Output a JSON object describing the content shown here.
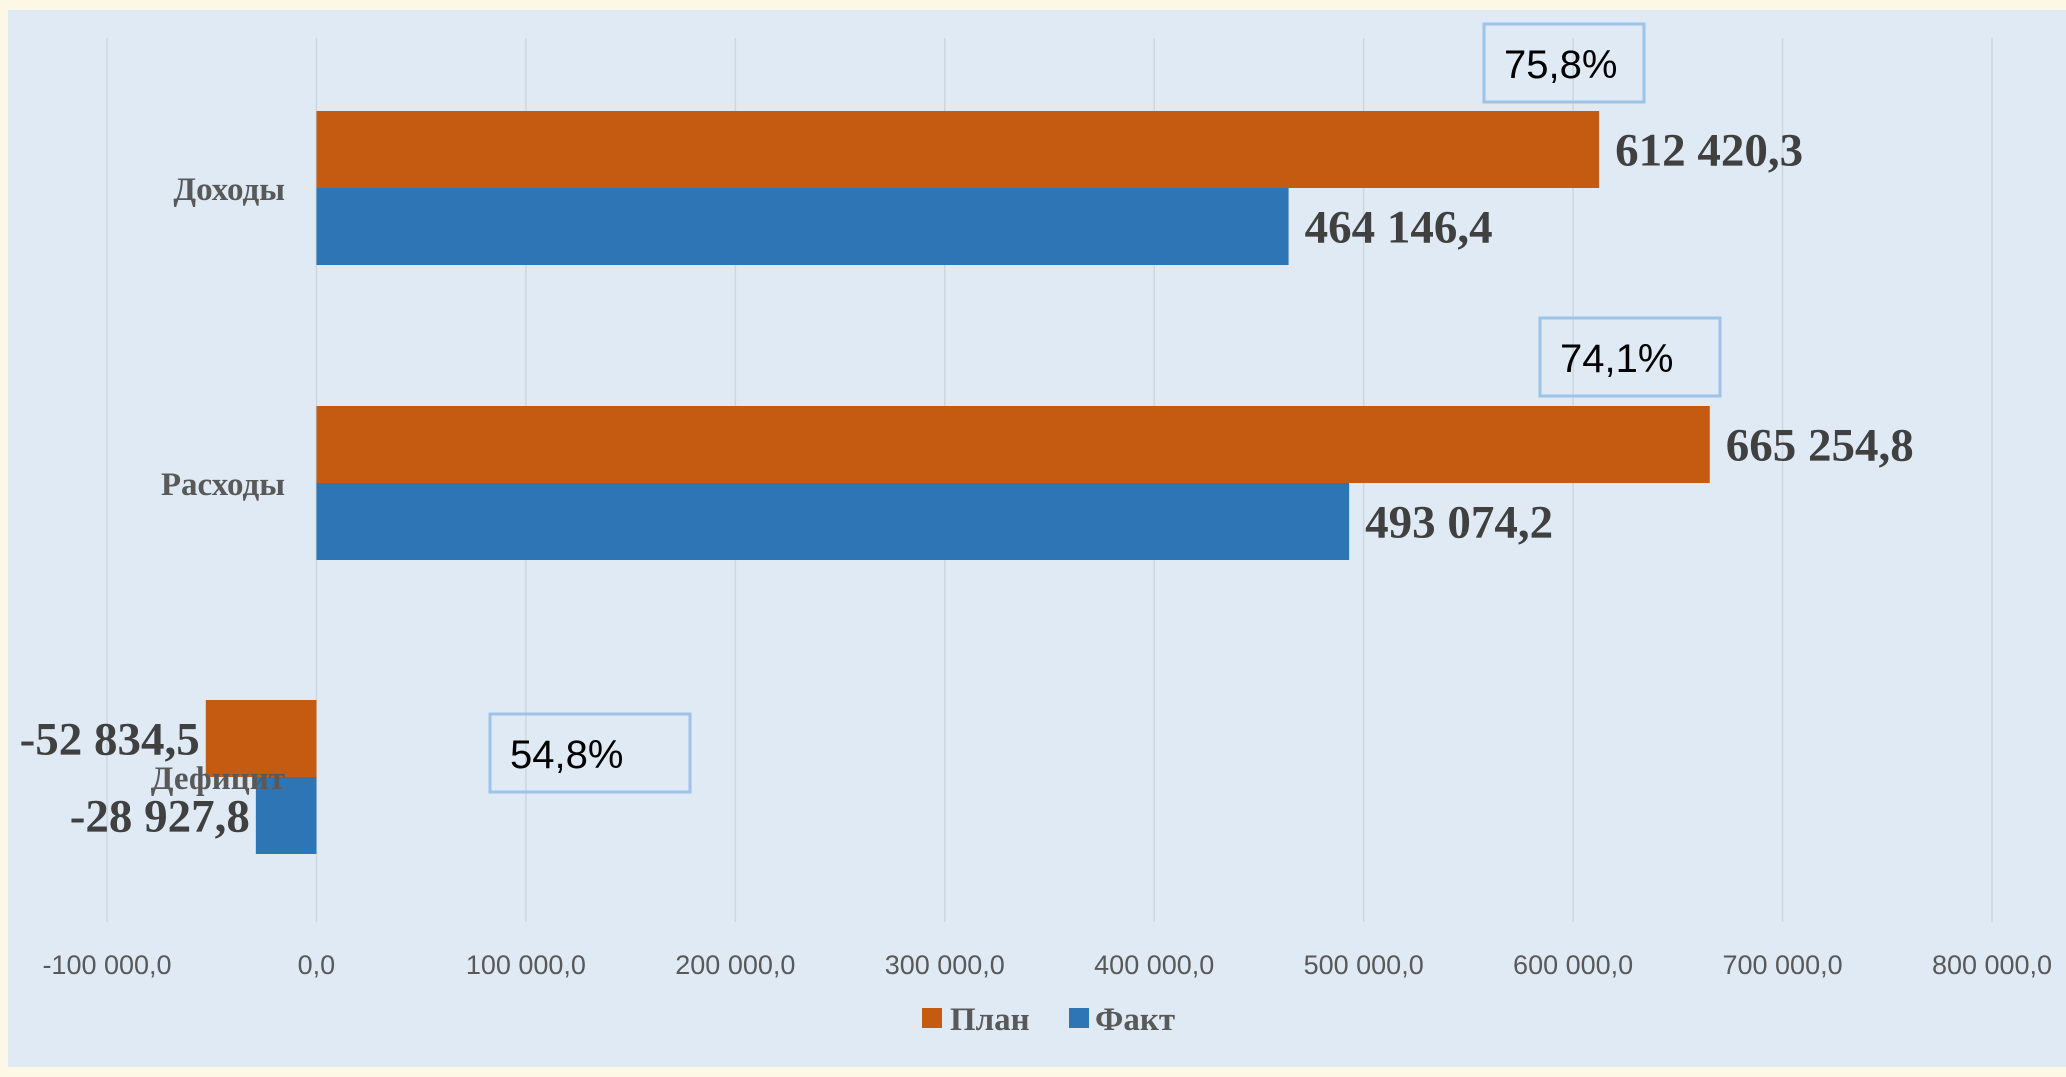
{
  "chart_data": {
    "type": "bar",
    "orientation": "horizontal",
    "categories": [
      "Доходы",
      "Расходы",
      "Дефицит"
    ],
    "series": [
      {
        "name": "План",
        "color": "#c55a11",
        "values": [
          612420.3,
          665254.8,
          -52834.5
        ],
        "labels": [
          "612 420,3",
          "665 254,8",
          "-52 834,5"
        ]
      },
      {
        "name": "Факт",
        "color": "#2e75b6",
        "values": [
          464146.4,
          493074.2,
          -28927.8
        ],
        "labels": [
          "464 146,4",
          "493 074,2",
          "-28 927,8"
        ]
      }
    ],
    "percent_annotations": [
      "75,8%",
      "74,1%",
      "54,8%"
    ],
    "xlim": [
      -100000,
      800000
    ],
    "ticks": [
      -100000,
      0,
      100000,
      200000,
      300000,
      400000,
      500000,
      600000,
      700000,
      800000
    ],
    "tick_labels": [
      "-100 000,0",
      "0,0",
      "100 000,0",
      "200 000,0",
      "300 000,0",
      "400 000,0",
      "500 000,0",
      "600 000,0",
      "700 000,0",
      "800 000,0"
    ],
    "grid": true,
    "legend_position": "bottom"
  }
}
